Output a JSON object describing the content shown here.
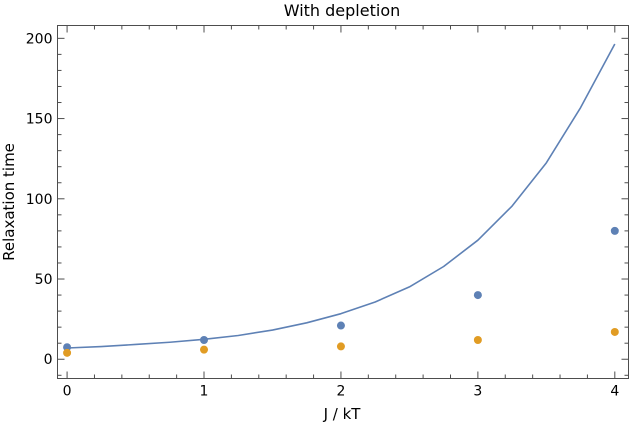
{
  "chart_data": {
    "type": "scatter",
    "title": "With depletion",
    "xlabel": "J / kT",
    "ylabel": "Relaxation time",
    "xlim": [
      -0.07,
      4.1
    ],
    "ylim": [
      -12,
      208
    ],
    "x_ticks": [
      0,
      1,
      2,
      3,
      4
    ],
    "y_ticks": [
      0,
      50,
      100,
      150,
      200
    ],
    "grid": false,
    "legend": "none",
    "series": [
      {
        "kind": "points",
        "color": "#5e81b5",
        "x": [
          0,
          1,
          2,
          3,
          4
        ],
        "y": [
          7.5,
          12,
          21,
          40,
          80
        ]
      },
      {
        "kind": "points",
        "color": "#e19c24",
        "x": [
          0,
          1,
          2,
          3,
          4
        ],
        "y": [
          4,
          6,
          8,
          12,
          17
        ]
      },
      {
        "kind": "line",
        "color": "#5e81b5",
        "x": [
          0,
          0.25,
          0.5,
          0.75,
          1,
          1.25,
          1.5,
          1.75,
          2,
          2.25,
          2.5,
          2.75,
          3,
          3.25,
          3.5,
          3.75,
          4
        ],
        "y": [
          7,
          7.9,
          9.2,
          10.6,
          12.4,
          14.8,
          18.2,
          22.7,
          28.4,
          35.7,
          45.1,
          57.8,
          74.2,
          95.5,
          122.4,
          156.8,
          196.5
        ]
      }
    ]
  }
}
